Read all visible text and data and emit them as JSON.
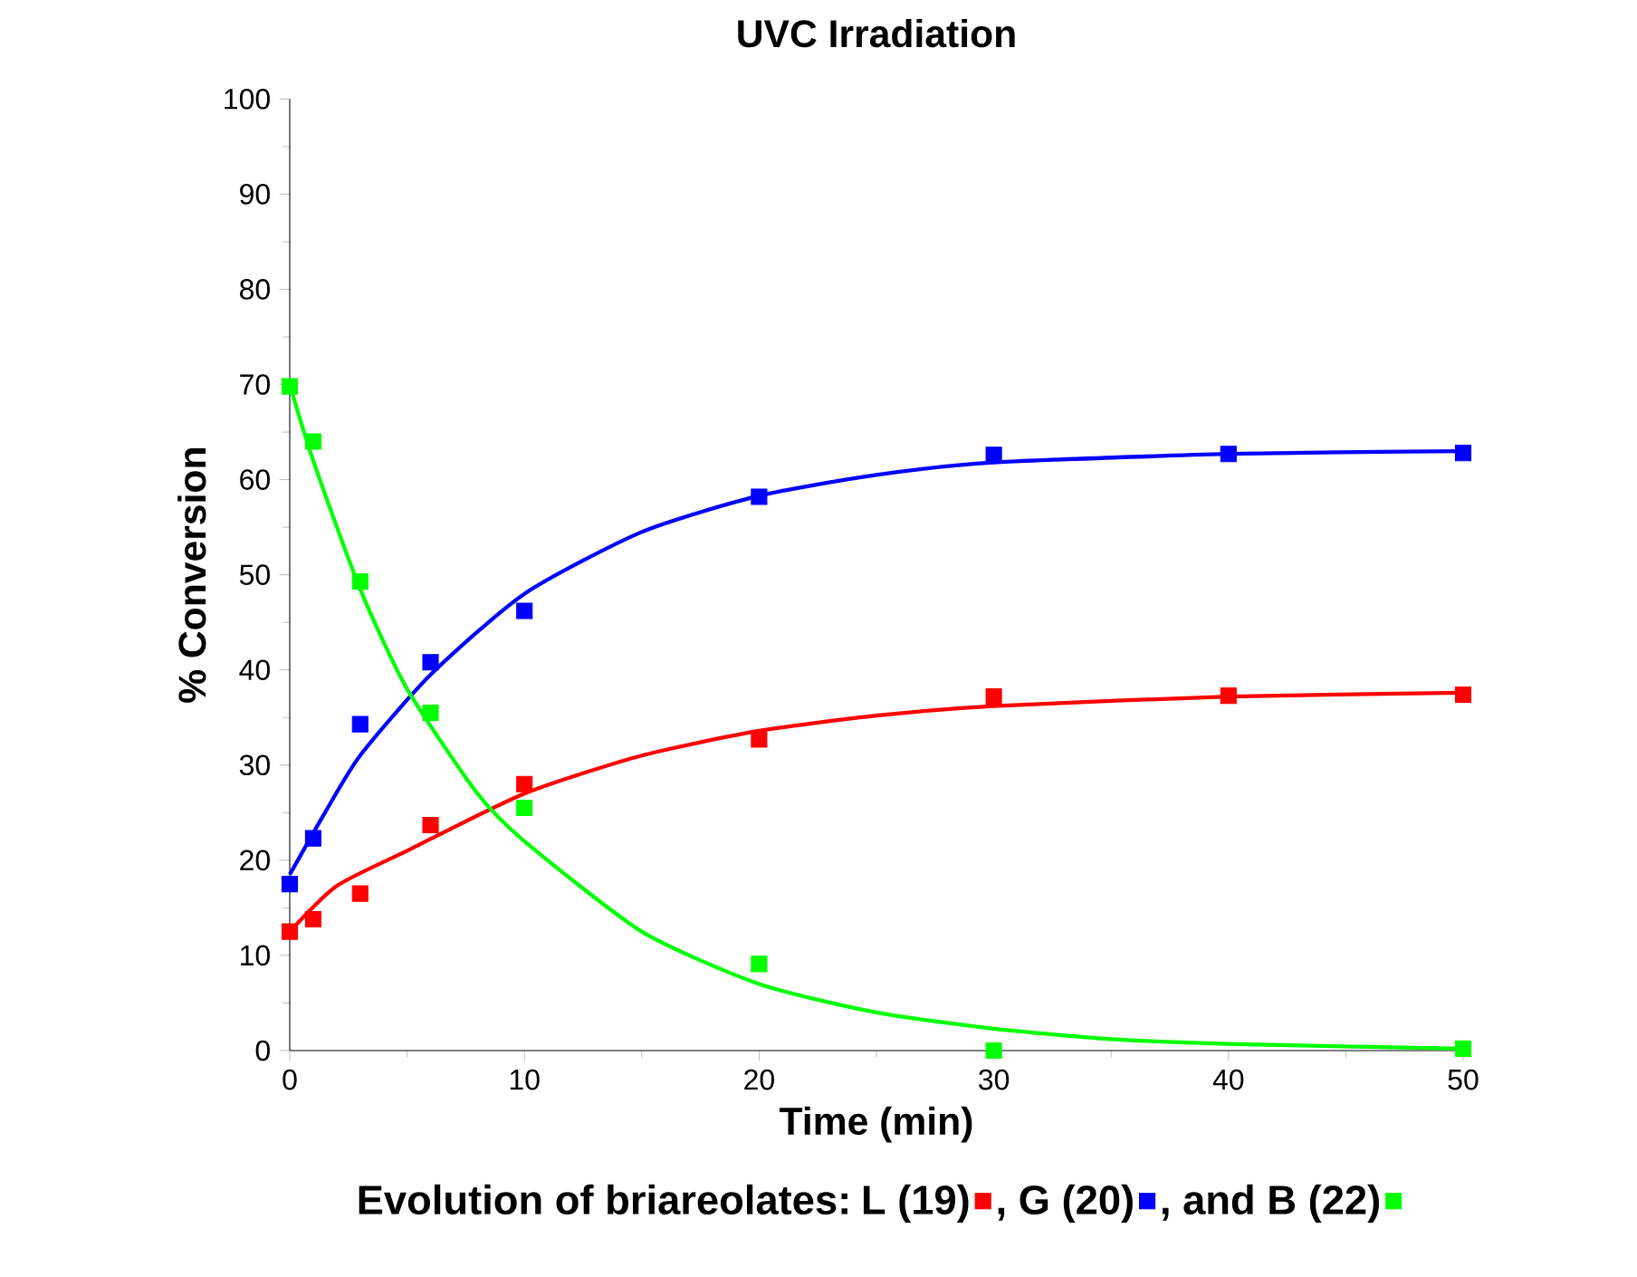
{
  "chart_data": {
    "type": "scatter",
    "title": "UVC Irradiation",
    "xlabel": "Time (min)",
    "ylabel": "% Conversion",
    "legend_title": "Evolution of briareolates:",
    "xlim": [
      0,
      50
    ],
    "xticks": [
      0,
      10,
      20,
      30,
      40,
      50
    ],
    "ylim": [
      0,
      100
    ],
    "yticks": [
      0,
      10,
      20,
      30,
      40,
      50,
      60,
      70,
      80,
      90,
      100
    ],
    "marker": "square",
    "legend": "bottom",
    "grid": false,
    "series": [
      {
        "name": "L (19)",
        "color": "#ff0000",
        "x": [
          0,
          1,
          3,
          6,
          10,
          20,
          30,
          40,
          50
        ],
        "values": [
          12.5,
          13.8,
          16.5,
          23.7,
          28,
          32.7,
          37.2,
          37.3,
          37.4
        ]
      },
      {
        "name": ", G (20)",
        "color": "#0000ff",
        "x": [
          0,
          1,
          3,
          6,
          10,
          20,
          30,
          40,
          50
        ],
        "values": [
          17.5,
          22.3,
          34.3,
          40.8,
          46.2,
          58.2,
          62.6,
          62.7,
          62.8
        ]
      },
      {
        "name": ", and B (22)",
        "color": "#00ff00",
        "x": [
          0,
          1,
          3,
          6,
          10,
          20,
          30,
          40,
          50
        ],
        "values": [
          69.8,
          64,
          49.3,
          35.5,
          25.5,
          9.1,
          0,
          null,
          0.2
        ]
      },
      {
        "type": "line",
        "marker": "none",
        "color": "#ff0000",
        "x": [
          0,
          2,
          5,
          10,
          15,
          20,
          25,
          30,
          40,
          50
        ],
        "values": [
          12.5,
          17.3,
          21,
          27,
          31,
          33.6,
          35.2,
          36.2,
          37.2,
          37.6
        ]
      },
      {
        "type": "line",
        "marker": "none",
        "color": "#0000ff",
        "x": [
          0,
          1.5,
          3,
          6,
          10,
          15,
          20,
          25,
          30,
          40,
          50
        ],
        "values": [
          18.5,
          25,
          31,
          39.5,
          48,
          54.5,
          58.3,
          60.5,
          61.8,
          62.7,
          63
        ]
      },
      {
        "type": "line",
        "marker": "none",
        "color": "#00ff00",
        "x": [
          0,
          1,
          3,
          5,
          8,
          10,
          15,
          20,
          25,
          30,
          35,
          40,
          50
        ],
        "values": [
          70,
          62,
          48.5,
          38,
          27,
          22,
          12.5,
          7,
          4,
          2.3,
          1.2,
          0.7,
          0.2
        ]
      }
    ]
  }
}
